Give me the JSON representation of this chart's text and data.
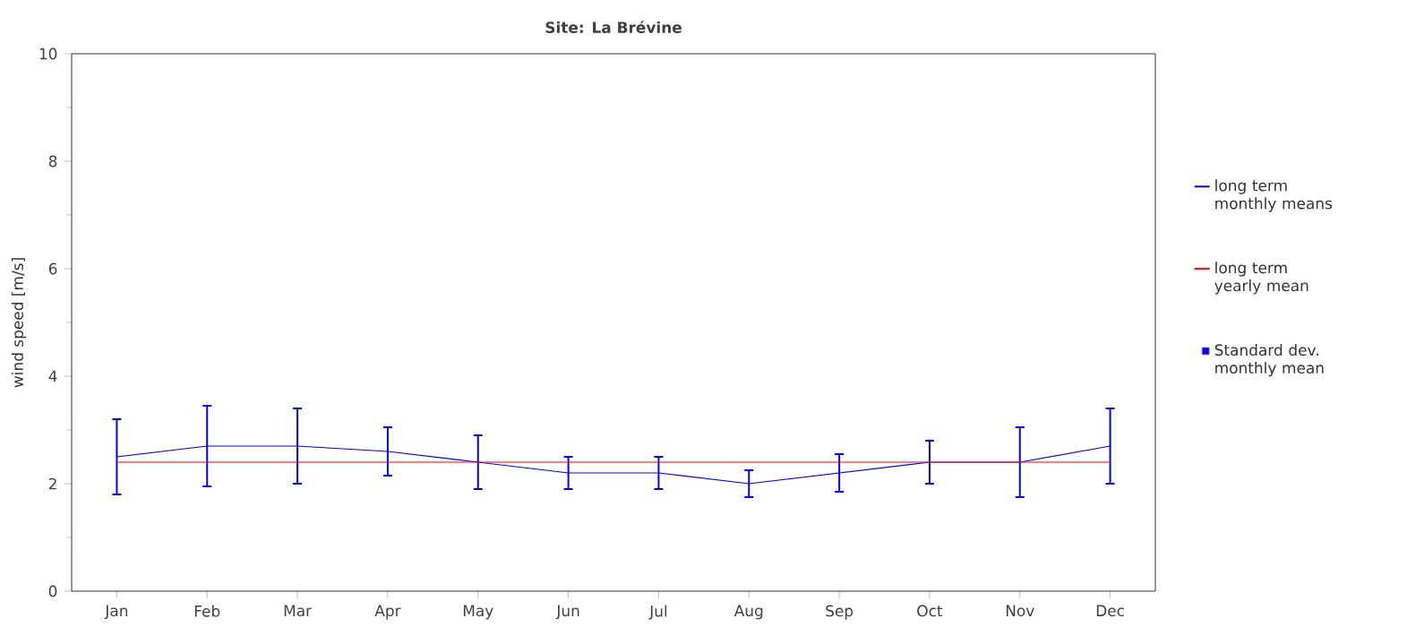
{
  "chart_data": {
    "type": "line",
    "title": "Site: La Brévine",
    "ylabel": "wind speed [m/s]",
    "categories": [
      "Jan",
      "Feb",
      "Mar",
      "Apr",
      "May",
      "Jun",
      "Jul",
      "Aug",
      "Sep",
      "Oct",
      "Nov",
      "Dec"
    ],
    "series": [
      {
        "name": "long term monthly means",
        "color": "#0000ff",
        "values": [
          2.5,
          2.7,
          2.7,
          2.6,
          2.4,
          2.2,
          2.2,
          2.0,
          2.2,
          2.4,
          2.4,
          2.7
        ],
        "errors": [
          0.7,
          0.75,
          0.7,
          0.45,
          0.5,
          0.3,
          0.3,
          0.25,
          0.35,
          0.4,
          0.65,
          0.7
        ]
      },
      {
        "name": "long term yearly mean",
        "color": "#ff0000",
        "values": [
          2.4,
          2.4,
          2.4,
          2.4,
          2.4,
          2.4,
          2.4,
          2.4,
          2.4,
          2.4,
          2.4,
          2.4
        ]
      }
    ],
    "annotations": [
      "Standard dev. monthly mean"
    ],
    "ylim": [
      0,
      10
    ],
    "yticks": [
      0,
      2,
      4,
      6,
      8,
      10
    ],
    "grid": false,
    "legend": "right"
  }
}
